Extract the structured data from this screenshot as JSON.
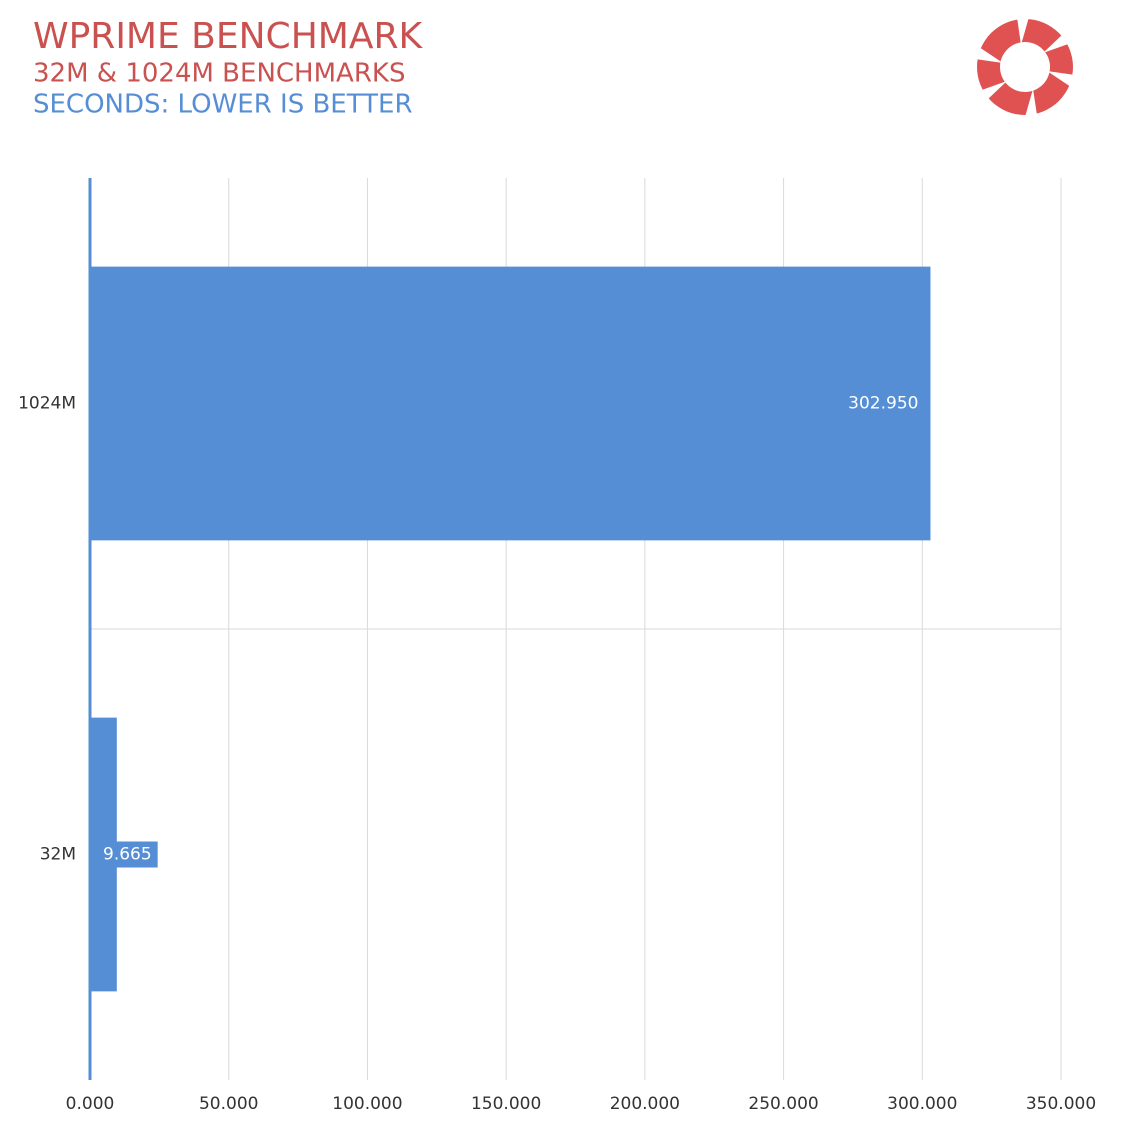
{
  "chart_data": {
    "type": "hbar",
    "title": "WPRIME BENCHMARK",
    "subtitle": "32M & 1024M BENCHMARKS",
    "note": "SECONDS: LOWER IS BETTER",
    "categories": [
      "1024M",
      "32M"
    ],
    "values": [
      302.95,
      9.665
    ],
    "value_labels": [
      "302.950",
      "9.665"
    ],
    "color": "#558ed5",
    "xlim": [
      0,
      350
    ],
    "xticks": [
      {
        "value": 0,
        "label": "0.000"
      },
      {
        "value": 50,
        "label": "50.000"
      },
      {
        "value": 100,
        "label": "100.000"
      },
      {
        "value": 150,
        "label": "150.000"
      },
      {
        "value": 200,
        "label": "200.000"
      },
      {
        "value": 250,
        "label": "250.000"
      },
      {
        "value": 300,
        "label": "300.000"
      },
      {
        "value": 350,
        "label": "350.000"
      }
    ],
    "grid": true
  }
}
